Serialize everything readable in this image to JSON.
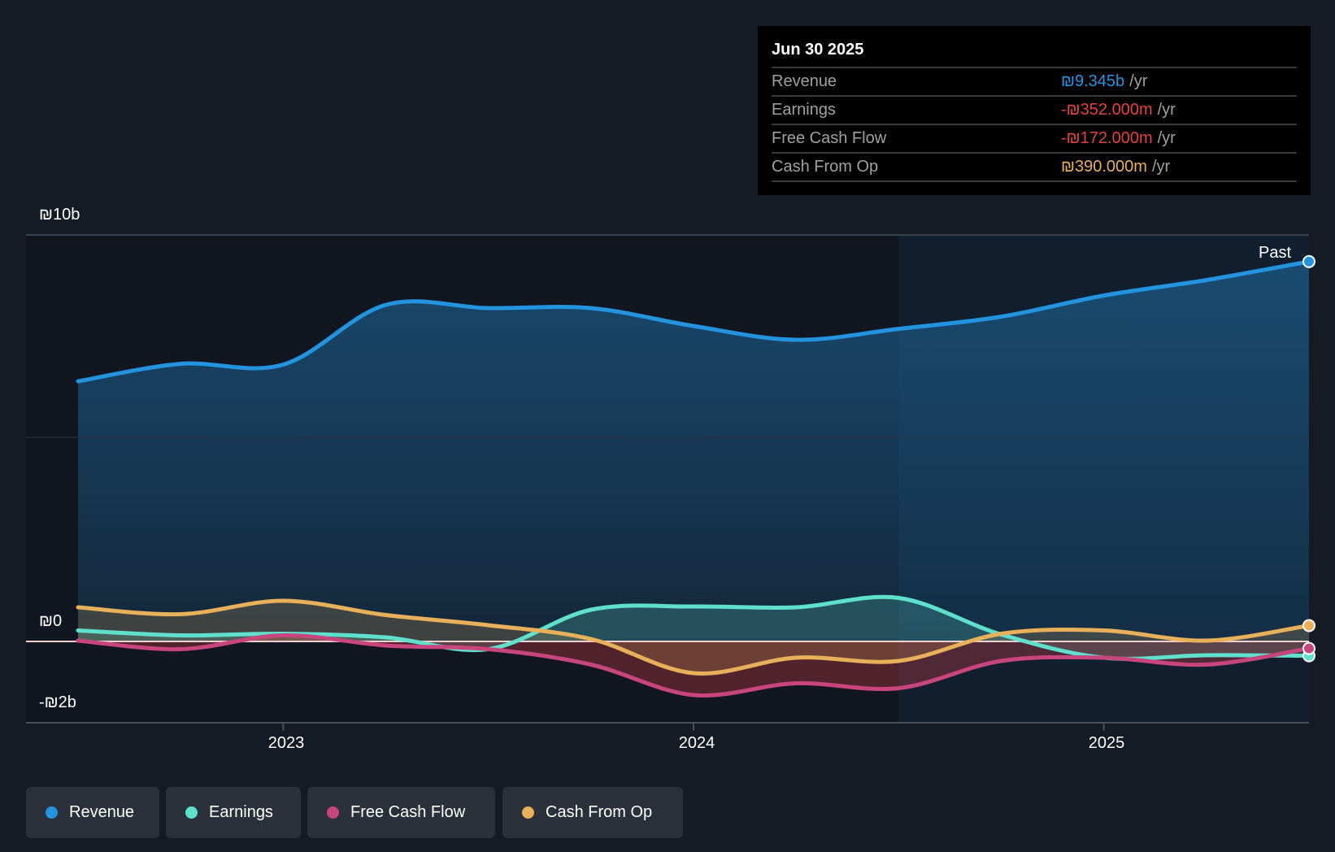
{
  "tooltip": {
    "date": "Jun 30 2025",
    "rows": [
      {
        "label": "Revenue",
        "value": "₪9.345b",
        "unit": "/yr",
        "color": "#2394e0"
      },
      {
        "label": "Earnings",
        "value": "-₪352.000m",
        "unit": "/yr",
        "color": "#e8403f"
      },
      {
        "label": "Free Cash Flow",
        "value": "-₪172.000m",
        "unit": "/yr",
        "color": "#e8403f"
      },
      {
        "label": "Cash From Op",
        "value": "₪390.000m",
        "unit": "/yr",
        "color": "#e8b059"
      }
    ]
  },
  "past_label": "Past",
  "legend": [
    {
      "label": "Revenue",
      "color": "#2394e0"
    },
    {
      "label": "Earnings",
      "color": "#5fe0cc"
    },
    {
      "label": "Free Cash Flow",
      "color": "#c8457e"
    },
    {
      "label": "Cash From Op",
      "color": "#e8b059"
    }
  ],
  "chart_data": {
    "type": "line",
    "title": "",
    "xlabel": "",
    "ylabel": "",
    "unit": "₪ billions",
    "y_tick_labels": [
      "₪10b",
      "₪0",
      "-₪2b"
    ],
    "x_tick_labels": [
      "2023",
      "2024",
      "2025"
    ],
    "ylim": [
      -2,
      10
    ],
    "xlim": [
      2022.5,
      2025.5
    ],
    "x": [
      2022.5,
      2022.75,
      2023.0,
      2023.25,
      2023.5,
      2023.75,
      2024.0,
      2024.25,
      2024.5,
      2024.75,
      2025.0,
      2025.25,
      2025.5
    ],
    "series": [
      {
        "name": "Revenue",
        "values": [
          6.4,
          6.83,
          6.81,
          8.28,
          8.2,
          8.2,
          7.76,
          7.42,
          7.69,
          7.99,
          8.51,
          8.89,
          9.345
        ]
      },
      {
        "name": "Earnings",
        "values": [
          0.27,
          0.15,
          0.19,
          0.1,
          -0.19,
          0.78,
          0.86,
          0.84,
          1.07,
          0.17,
          -0.4,
          -0.34,
          -0.352
        ]
      },
      {
        "name": "Free Cash Flow",
        "values": [
          0.02,
          -0.19,
          0.15,
          -0.1,
          -0.19,
          -0.57,
          -1.32,
          -1.03,
          -1.15,
          -0.48,
          -0.4,
          -0.57,
          -0.172
        ]
      },
      {
        "name": "Cash From Op",
        "values": [
          0.84,
          0.67,
          1.0,
          0.65,
          0.4,
          0.06,
          -0.78,
          -0.4,
          -0.48,
          0.19,
          0.27,
          0.02,
          0.39
        ]
      }
    ],
    "highlight_from": 2024.5,
    "grid": true,
    "legend_position": "bottom-left"
  }
}
